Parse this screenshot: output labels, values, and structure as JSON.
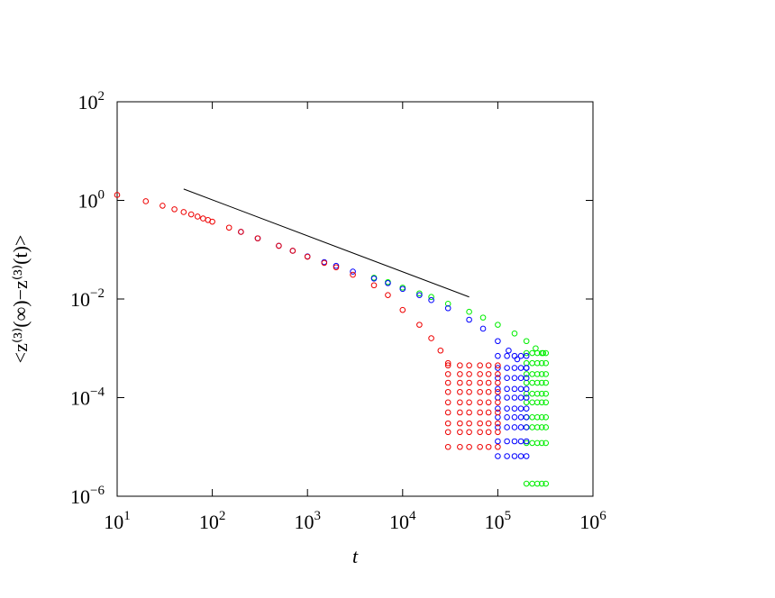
{
  "chart_data": {
    "type": "scatter",
    "log_x": true,
    "log_y": true,
    "xlabel": "t",
    "ylabel": "<z⁽³⁾(∞)−z⁽³⁾(t)>",
    "xlim": [
      10,
      1000000
    ],
    "ylim": [
      1e-06,
      100
    ],
    "xticks": [
      {
        "value": 10,
        "label": "10",
        "exponent": "1"
      },
      {
        "value": 100,
        "label": "10",
        "exponent": "2"
      },
      {
        "value": 1000,
        "label": "10",
        "exponent": "3"
      },
      {
        "value": 10000,
        "label": "10",
        "exponent": "4"
      },
      {
        "value": 100000,
        "label": "10",
        "exponent": "5"
      },
      {
        "value": 1000000,
        "label": "10",
        "exponent": "6"
      }
    ],
    "yticks": [
      {
        "value": 1e-06,
        "label": "10",
        "exponent": "−6"
      },
      {
        "value": 0.0001,
        "label": "10",
        "exponent": "−4"
      },
      {
        "value": 0.01,
        "label": "10",
        "exponent": "−2"
      },
      {
        "value": 1,
        "label": "10",
        "exponent": "0"
      },
      {
        "value": 100,
        "label": "10",
        "exponent": "2"
      }
    ],
    "series": [
      {
        "color": "#00ee00",
        "x": [
          5000,
          7000,
          10000,
          15000,
          20000,
          30000,
          50000,
          70000,
          100000,
          150000,
          200000,
          250000,
          300000,
          200000,
          200000,
          200000,
          200000,
          200000,
          200000,
          200000,
          200000,
          200000,
          200000,
          230000,
          230000,
          230000,
          230000,
          230000,
          230000,
          230000,
          230000,
          230000,
          230000,
          260000,
          260000,
          260000,
          260000,
          260000,
          260000,
          260000,
          260000,
          260000,
          260000,
          290000,
          290000,
          290000,
          290000,
          290000,
          290000,
          290000,
          290000,
          290000,
          290000,
          320000,
          320000,
          320000,
          320000,
          320000,
          320000,
          320000,
          320000,
          320000,
          320000
        ],
        "y": [
          0.027,
          0.022,
          0.017,
          0.013,
          0.011,
          0.008,
          0.0055,
          0.0042,
          0.003,
          0.002,
          0.0014,
          0.001,
          0.0008,
          0.0008,
          0.0005,
          0.0003,
          0.0002,
          0.00012,
          8e-05,
          4e-05,
          2.5e-05,
          1.2e-05,
          1.8e-06,
          0.0008,
          0.0005,
          0.0003,
          0.0002,
          0.00012,
          8e-05,
          4e-05,
          2.5e-05,
          1.2e-05,
          1.8e-06,
          0.0008,
          0.0005,
          0.0003,
          0.0002,
          0.00012,
          8e-05,
          4e-05,
          2.5e-05,
          1.2e-05,
          1.8e-06,
          0.0008,
          0.0005,
          0.0003,
          0.0002,
          0.00012,
          8e-05,
          4e-05,
          2.5e-05,
          1.2e-05,
          1.8e-06,
          0.0008,
          0.0005,
          0.0003,
          0.0002,
          0.00012,
          8e-05,
          4e-05,
          2.5e-05,
          1.2e-05,
          1.8e-06
        ]
      },
      {
        "color": "#0000ff",
        "x": [
          200,
          300,
          500,
          700,
          1000,
          1500,
          2000,
          3000,
          5000,
          7000,
          10000,
          15000,
          20000,
          30000,
          50000,
          70000,
          100000,
          130000,
          160000,
          200000,
          100000,
          100000,
          100000,
          100000,
          100000,
          100000,
          100000,
          100000,
          100000,
          100000,
          125000,
          125000,
          125000,
          125000,
          125000,
          125000,
          125000,
          125000,
          125000,
          125000,
          150000,
          150000,
          150000,
          150000,
          150000,
          150000,
          150000,
          150000,
          150000,
          150000,
          175000,
          175000,
          175000,
          175000,
          175000,
          175000,
          175000,
          175000,
          175000,
          175000,
          200000,
          200000,
          200000,
          200000,
          200000,
          200000,
          200000,
          200000,
          200000,
          200000
        ],
        "y": [
          0.23,
          0.17,
          0.12,
          0.095,
          0.073,
          0.056,
          0.047,
          0.036,
          0.026,
          0.021,
          0.016,
          0.012,
          0.0095,
          0.0065,
          0.0038,
          0.0025,
          0.0014,
          0.0009,
          0.0006,
          0.0004,
          0.0007,
          0.0004,
          0.00025,
          0.00015,
          0.0001,
          6e-05,
          4e-05,
          2.5e-05,
          1.3e-05,
          6.5e-06,
          0.0007,
          0.0004,
          0.00025,
          0.00015,
          0.0001,
          6e-05,
          4e-05,
          2.5e-05,
          1.3e-05,
          6.5e-06,
          0.0007,
          0.0004,
          0.00025,
          0.00015,
          0.0001,
          6e-05,
          4e-05,
          2.5e-05,
          1.3e-05,
          6.5e-06,
          0.0007,
          0.0004,
          0.00025,
          0.00015,
          0.0001,
          6e-05,
          4e-05,
          2.5e-05,
          1.3e-05,
          6.5e-06,
          0.0007,
          0.0004,
          0.00025,
          0.00015,
          0.0001,
          6e-05,
          4e-05,
          2.5e-05,
          1.3e-05,
          6.5e-06
        ]
      },
      {
        "color": "#ee0000",
        "x": [
          10,
          20,
          30,
          40,
          50,
          60,
          70,
          80,
          90,
          100,
          150,
          200,
          300,
          500,
          700,
          1000,
          1500,
          2000,
          3000,
          5000,
          7000,
          10000,
          15000,
          20000,
          25000,
          30000,
          30000,
          30000,
          30000,
          30000,
          30000,
          30000,
          30000,
          30000,
          30000,
          40000,
          40000,
          40000,
          40000,
          40000,
          40000,
          40000,
          40000,
          40000,
          50000,
          50000,
          50000,
          50000,
          50000,
          50000,
          50000,
          50000,
          50000,
          65000,
          65000,
          65000,
          65000,
          65000,
          65000,
          65000,
          65000,
          65000,
          80000,
          80000,
          80000,
          80000,
          80000,
          80000,
          80000,
          80000,
          80000,
          100000,
          100000,
          100000,
          100000,
          100000,
          100000,
          100000,
          100000,
          100000
        ],
        "y": [
          1.29,
          0.96,
          0.78,
          0.66,
          0.58,
          0.52,
          0.47,
          0.43,
          0.4,
          0.37,
          0.28,
          0.23,
          0.17,
          0.12,
          0.095,
          0.072,
          0.054,
          0.044,
          0.031,
          0.019,
          0.012,
          0.006,
          0.003,
          0.0016,
          0.0009,
          0.0005,
          0.00045,
          0.0003,
          0.0002,
          0.00013,
          8e-05,
          5e-05,
          3e-05,
          2e-05,
          1e-05,
          0.00045,
          0.0003,
          0.0002,
          0.00013,
          8e-05,
          5e-05,
          3e-05,
          2e-05,
          1e-05,
          0.00045,
          0.0003,
          0.0002,
          0.00013,
          8e-05,
          5e-05,
          3e-05,
          2e-05,
          1e-05,
          0.00045,
          0.0003,
          0.0002,
          0.00013,
          8e-05,
          5e-05,
          3e-05,
          2e-05,
          1e-05,
          0.00045,
          0.0003,
          0.0002,
          0.00013,
          8e-05,
          5e-05,
          3e-05,
          2e-05,
          1e-05,
          0.00045,
          0.0003,
          0.0002,
          0.00013,
          8e-05,
          5e-05,
          3e-05,
          2e-05,
          1e-05
        ]
      }
    ],
    "lines": [
      {
        "color": "#000000",
        "x": [
          50,
          50000
        ],
        "y": [
          1.7,
          0.011
        ]
      }
    ]
  }
}
